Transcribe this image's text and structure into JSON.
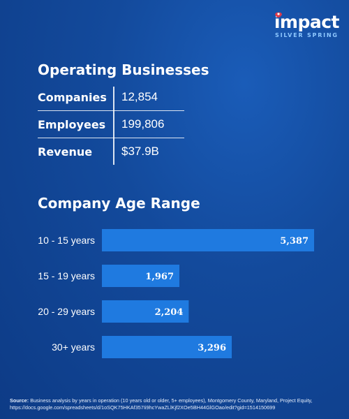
{
  "logo": {
    "word": "impact",
    "sub": "SILVER SPRING"
  },
  "operating": {
    "title": "Operating Businesses",
    "rows": [
      {
        "label": "Companies",
        "value": "12,854"
      },
      {
        "label": "Employees",
        "value": "199,806"
      },
      {
        "label": "Revenue",
        "value": "$37.9B"
      }
    ]
  },
  "chart_data": {
    "type": "bar",
    "orientation": "horizontal",
    "title": "Company Age Range",
    "categories": [
      "10 - 15 years",
      "15 - 19 years",
      "20 - 29 years",
      "30+ years"
    ],
    "values": [
      5387,
      1967,
      2204,
      3296
    ],
    "value_labels": [
      "5,387",
      "1,967",
      "2,204",
      "3,296"
    ],
    "bar_color": "#1f7ae0",
    "grid": false,
    "legend": "none"
  },
  "footer": {
    "source_label": "Source:",
    "text": "Business analysis by years in operation (10 years old or older, 5+ employees), Montgomery County, Maryland, Project Equity, https://docs.google.com/spreadsheets/d/1oSQK75HKAf357Ii9hcYwaZLlKjf2XOe5BH44GlGOao/edit?gid=1514150699"
  }
}
